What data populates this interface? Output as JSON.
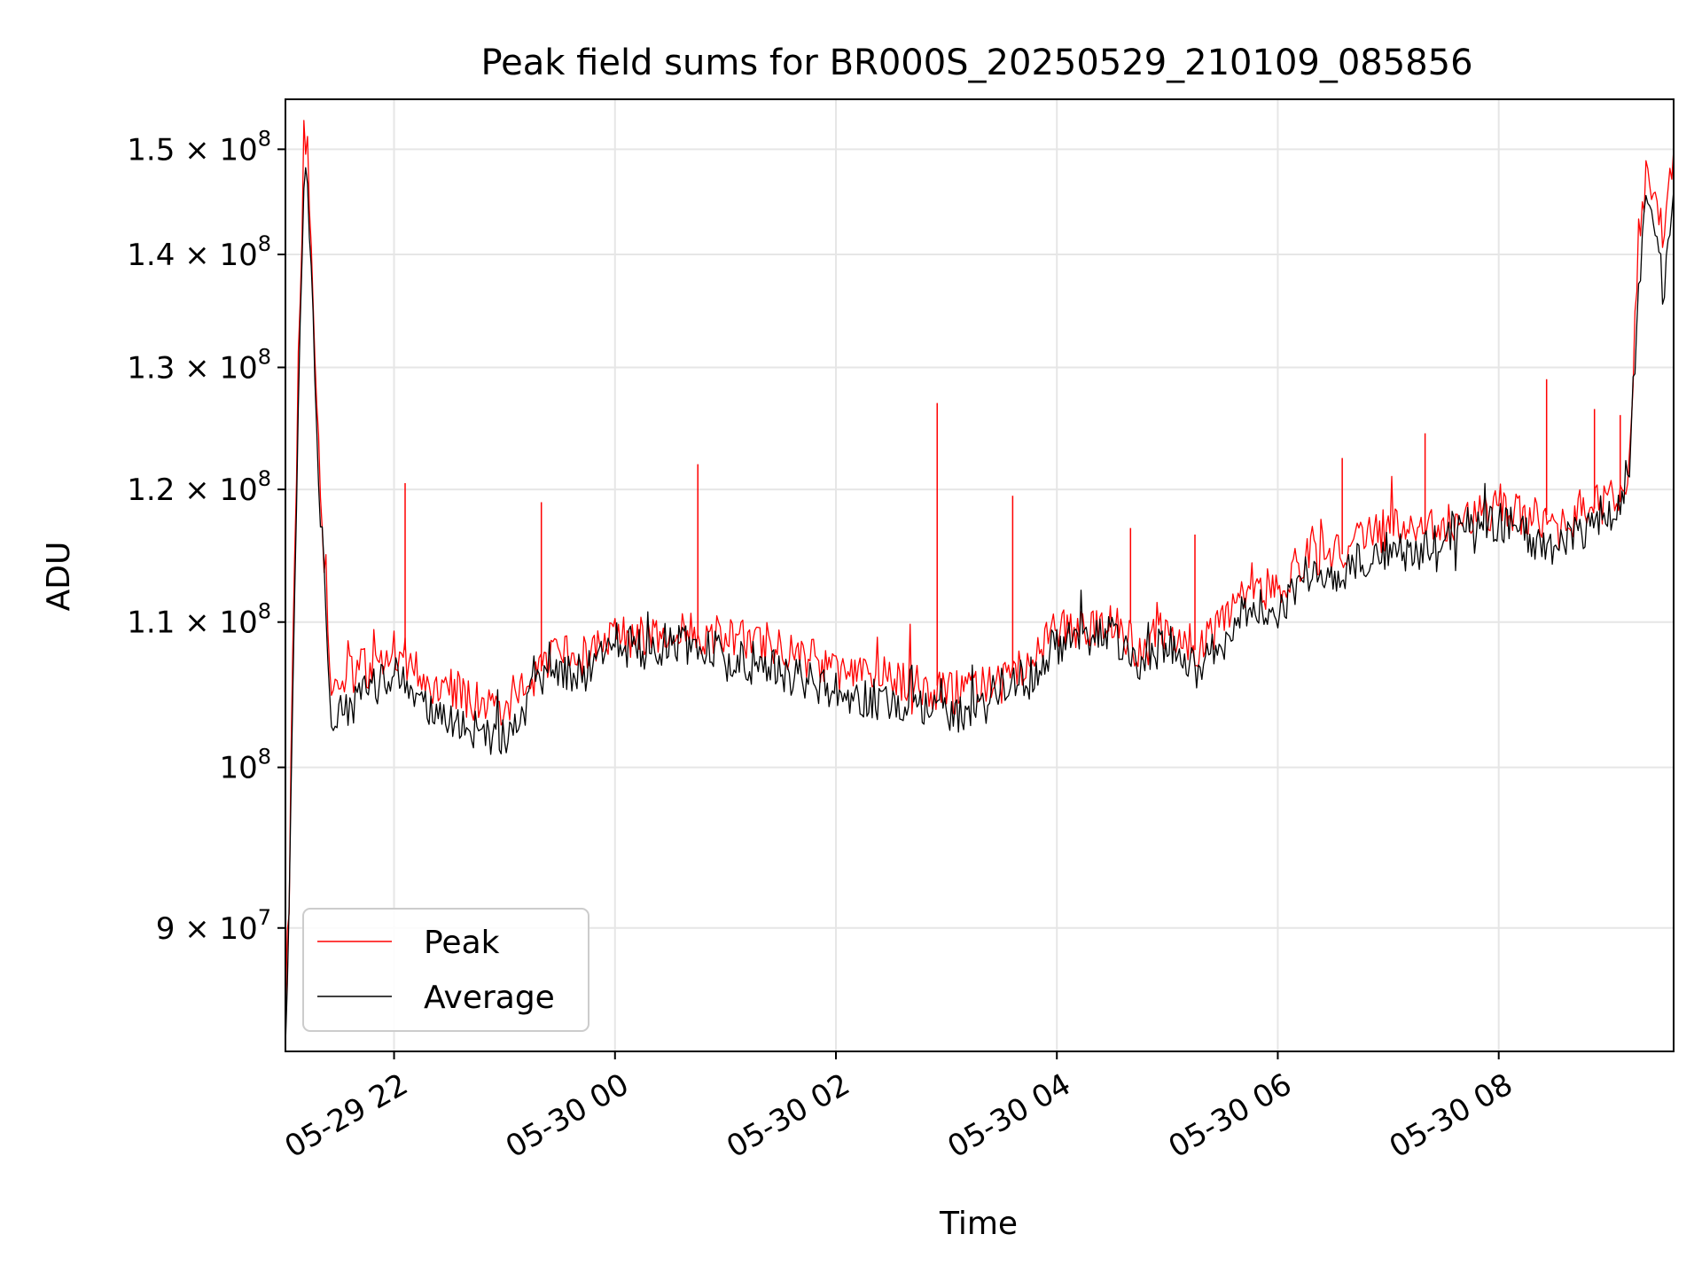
{
  "chart_data": {
    "type": "line",
    "title": "Peak field sums for BR000S_20250529_210109_085856",
    "xlabel": "Time",
    "ylabel": "ADU",
    "yscale": "log",
    "grid": true,
    "legend_position": "lower-left",
    "xlim": [
      "2025-05-29 21:01",
      "2025-05-30 09:35"
    ],
    "ylim": [
      83000000,
      155000000
    ],
    "x_ticks": [
      {
        "value": "2025-05-29 22:00",
        "label": "05-29 22"
      },
      {
        "value": "2025-05-30 00:00",
        "label": "05-30 00"
      },
      {
        "value": "2025-05-30 02:00",
        "label": "05-30 02"
      },
      {
        "value": "2025-05-30 04:00",
        "label": "05-30 04"
      },
      {
        "value": "2025-05-30 06:00",
        "label": "05-30 06"
      },
      {
        "value": "2025-05-30 08:00",
        "label": "05-30 08"
      }
    ],
    "y_ticks": [
      {
        "value": 90000000,
        "mantissa": "9",
        "times": "×",
        "base": "10",
        "exp": "7"
      },
      {
        "value": 100000000,
        "mantissa": "",
        "times": "",
        "base": "10",
        "exp": "8"
      },
      {
        "value": 110000000,
        "mantissa": "1.1",
        "times": "×",
        "base": "10",
        "exp": "8"
      },
      {
        "value": 120000000,
        "mantissa": "1.2",
        "times": "×",
        "base": "10",
        "exp": "8"
      },
      {
        "value": 130000000,
        "mantissa": "1.3",
        "times": "×",
        "base": "10",
        "exp": "8"
      },
      {
        "value": 140000000,
        "mantissa": "1.4",
        "times": "×",
        "base": "10",
        "exp": "8"
      },
      {
        "value": 150000000,
        "mantissa": "1.5",
        "times": "×",
        "base": "10",
        "exp": "8"
      }
    ],
    "series": [
      {
        "name": "Peak",
        "color": "#ff0000",
        "points": [
          {
            "t": "2025-05-29 21:01",
            "v": 86000000
          },
          {
            "t": "2025-05-29 21:03",
            "v": 92000000
          },
          {
            "t": "2025-05-29 21:05",
            "v": 108000000
          },
          {
            "t": "2025-05-29 21:07",
            "v": 122000000
          },
          {
            "t": "2025-05-29 21:09",
            "v": 137000000
          },
          {
            "t": "2025-05-29 21:11",
            "v": 149000000
          },
          {
            "t": "2025-05-29 21:13",
            "v": 151000000
          },
          {
            "t": "2025-05-29 21:15",
            "v": 141000000
          },
          {
            "t": "2025-05-29 21:18",
            "v": 126000000
          },
          {
            "t": "2025-05-29 21:22",
            "v": 115000000
          },
          {
            "t": "2025-05-29 21:26",
            "v": 106000000
          },
          {
            "t": "2025-05-29 21:30",
            "v": 105500000
          },
          {
            "t": "2025-05-29 21:40",
            "v": 106500000
          },
          {
            "t": "2025-05-29 21:50",
            "v": 107000000
          },
          {
            "t": "2025-05-29 22:00",
            "v": 108000000
          },
          {
            "t": "2025-05-29 22:10",
            "v": 107000000
          },
          {
            "t": "2025-05-29 22:20",
            "v": 105500000
          },
          {
            "t": "2025-05-29 22:30",
            "v": 105000000
          },
          {
            "t": "2025-05-29 22:45",
            "v": 104500000
          },
          {
            "t": "2025-05-29 23:00",
            "v": 104000000
          },
          {
            "t": "2025-05-29 23:15",
            "v": 106500000
          },
          {
            "t": "2025-05-29 23:30",
            "v": 107500000
          },
          {
            "t": "2025-05-29 23:45",
            "v": 107500000
          },
          {
            "t": "2025-05-30 00:00",
            "v": 109000000
          },
          {
            "t": "2025-05-30 00:15",
            "v": 109000000
          },
          {
            "t": "2025-05-30 00:30",
            "v": 109500000
          },
          {
            "t": "2025-05-30 00:45",
            "v": 109000000
          },
          {
            "t": "2025-05-30 01:00",
            "v": 109000000
          },
          {
            "t": "2025-05-30 01:15",
            "v": 108500000
          },
          {
            "t": "2025-05-30 01:30",
            "v": 108000000
          },
          {
            "t": "2025-05-30 01:45",
            "v": 107500000
          },
          {
            "t": "2025-05-30 02:00",
            "v": 106500000
          },
          {
            "t": "2025-05-30 02:15",
            "v": 106000000
          },
          {
            "t": "2025-05-30 02:30",
            "v": 106000000
          },
          {
            "t": "2025-05-30 02:45",
            "v": 105500000
          },
          {
            "t": "2025-05-30 03:00",
            "v": 105000000
          },
          {
            "t": "2025-05-30 03:15",
            "v": 105000000
          },
          {
            "t": "2025-05-30 03:30",
            "v": 106500000
          },
          {
            "t": "2025-05-30 03:45",
            "v": 107000000
          },
          {
            "t": "2025-05-30 04:00",
            "v": 109500000
          },
          {
            "t": "2025-05-30 04:15",
            "v": 109500000
          },
          {
            "t": "2025-05-30 04:30",
            "v": 110000000
          },
          {
            "t": "2025-05-30 04:45",
            "v": 108000000
          },
          {
            "t": "2025-05-30 05:00",
            "v": 109500000
          },
          {
            "t": "2025-05-30 05:15",
            "v": 108000000
          },
          {
            "t": "2025-05-30 05:30",
            "v": 110000000
          },
          {
            "t": "2025-05-30 05:45",
            "v": 113000000
          },
          {
            "t": "2025-05-30 06:00",
            "v": 112000000
          },
          {
            "t": "2025-05-30 06:15",
            "v": 115000000
          },
          {
            "t": "2025-05-30 06:30",
            "v": 115000000
          },
          {
            "t": "2025-05-30 06:45",
            "v": 116000000
          },
          {
            "t": "2025-05-30 07:00",
            "v": 117000000
          },
          {
            "t": "2025-05-30 07:15",
            "v": 116500000
          },
          {
            "t": "2025-05-30 07:30",
            "v": 117500000
          },
          {
            "t": "2025-05-30 07:45",
            "v": 118000000
          },
          {
            "t": "2025-05-30 08:00",
            "v": 118500000
          },
          {
            "t": "2025-05-30 08:15",
            "v": 118000000
          },
          {
            "t": "2025-05-30 08:30",
            "v": 116500000
          },
          {
            "t": "2025-05-30 08:45",
            "v": 118500000
          },
          {
            "t": "2025-05-30 09:00",
            "v": 119000000
          },
          {
            "t": "2025-05-30 09:10",
            "v": 121000000
          },
          {
            "t": "2025-05-30 09:16",
            "v": 140000000
          },
          {
            "t": "2025-05-30 09:20",
            "v": 147000000
          },
          {
            "t": "2025-05-30 09:25",
            "v": 145000000
          },
          {
            "t": "2025-05-30 09:30",
            "v": 141000000
          },
          {
            "t": "2025-05-30 09:35",
            "v": 150000000
          }
        ],
        "spikes": [
          {
            "t": "2025-05-29 22:06",
            "v": 120500000
          },
          {
            "t": "2025-05-29 23:20",
            "v": 119000000
          },
          {
            "t": "2025-05-30 00:45",
            "v": 122000000
          },
          {
            "t": "2025-05-30 02:55",
            "v": 127000000
          },
          {
            "t": "2025-05-30 03:36",
            "v": 119500000
          },
          {
            "t": "2025-05-30 04:40",
            "v": 117000000
          },
          {
            "t": "2025-05-30 05:15",
            "v": 116500000
          },
          {
            "t": "2025-05-30 06:35",
            "v": 122500000
          },
          {
            "t": "2025-05-30 07:20",
            "v": 124500000
          },
          {
            "t": "2025-05-30 08:26",
            "v": 129000000
          },
          {
            "t": "2025-05-30 08:52",
            "v": 126500000
          },
          {
            "t": "2025-05-30 09:06",
            "v": 126000000
          }
        ]
      },
      {
        "name": "Average",
        "color": "#000000",
        "points": [
          {
            "t": "2025-05-29 21:01",
            "v": 84500000
          },
          {
            "t": "2025-05-29 21:03",
            "v": 90500000
          },
          {
            "t": "2025-05-29 21:05",
            "v": 106000000
          },
          {
            "t": "2025-05-29 21:07",
            "v": 120000000
          },
          {
            "t": "2025-05-29 21:09",
            "v": 135000000
          },
          {
            "t": "2025-05-29 21:11",
            "v": 146000000
          },
          {
            "t": "2025-05-29 21:13",
            "v": 148000000
          },
          {
            "t": "2025-05-29 21:15",
            "v": 138000000
          },
          {
            "t": "2025-05-29 21:18",
            "v": 124000000
          },
          {
            "t": "2025-05-29 21:22",
            "v": 113000000
          },
          {
            "t": "2025-05-29 21:26",
            "v": 102500000
          },
          {
            "t": "2025-05-29 21:30",
            "v": 103500000
          },
          {
            "t": "2025-05-29 21:40",
            "v": 104500000
          },
          {
            "t": "2025-05-29 21:50",
            "v": 105500000
          },
          {
            "t": "2025-05-29 22:00",
            "v": 106500000
          },
          {
            "t": "2025-05-29 22:10",
            "v": 104500000
          },
          {
            "t": "2025-05-29 22:20",
            "v": 103500000
          },
          {
            "t": "2025-05-29 22:30",
            "v": 103000000
          },
          {
            "t": "2025-05-29 22:45",
            "v": 102500000
          },
          {
            "t": "2025-05-29 23:00",
            "v": 102000000
          },
          {
            "t": "2025-05-29 23:15",
            "v": 105000000
          },
          {
            "t": "2025-05-29 23:30",
            "v": 106000000
          },
          {
            "t": "2025-05-29 23:45",
            "v": 106500000
          },
          {
            "t": "2025-05-30 00:00",
            "v": 108500000
          },
          {
            "t": "2025-05-30 00:15",
            "v": 108000000
          },
          {
            "t": "2025-05-30 00:30",
            "v": 108500000
          },
          {
            "t": "2025-05-30 00:45",
            "v": 108000000
          },
          {
            "t": "2025-05-30 01:00",
            "v": 107500000
          },
          {
            "t": "2025-05-30 01:15",
            "v": 107000000
          },
          {
            "t": "2025-05-30 01:30",
            "v": 106500000
          },
          {
            "t": "2025-05-30 01:45",
            "v": 106000000
          },
          {
            "t": "2025-05-30 02:00",
            "v": 105000000
          },
          {
            "t": "2025-05-30 02:15",
            "v": 104500000
          },
          {
            "t": "2025-05-30 02:30",
            "v": 104500000
          },
          {
            "t": "2025-05-30 02:45",
            "v": 104000000
          },
          {
            "t": "2025-05-30 03:00",
            "v": 103500000
          },
          {
            "t": "2025-05-30 03:15",
            "v": 103500000
          },
          {
            "t": "2025-05-30 03:30",
            "v": 105500000
          },
          {
            "t": "2025-05-30 03:45",
            "v": 106000000
          },
          {
            "t": "2025-05-30 04:00",
            "v": 108500000
          },
          {
            "t": "2025-05-30 04:15",
            "v": 108500000
          },
          {
            "t": "2025-05-30 04:30",
            "v": 109000000
          },
          {
            "t": "2025-05-30 04:45",
            "v": 107000000
          },
          {
            "t": "2025-05-30 05:00",
            "v": 108500000
          },
          {
            "t": "2025-05-30 05:15",
            "v": 106500000
          },
          {
            "t": "2025-05-30 05:30",
            "v": 108500000
          },
          {
            "t": "2025-05-30 05:45",
            "v": 111500000
          },
          {
            "t": "2025-05-30 06:00",
            "v": 110500000
          },
          {
            "t": "2025-05-30 06:15",
            "v": 113500000
          },
          {
            "t": "2025-05-30 06:30",
            "v": 113500000
          },
          {
            "t": "2025-05-30 06:45",
            "v": 114500000
          },
          {
            "t": "2025-05-30 07:00",
            "v": 115500000
          },
          {
            "t": "2025-05-30 07:15",
            "v": 115000000
          },
          {
            "t": "2025-05-30 07:30",
            "v": 116500000
          },
          {
            "t": "2025-05-30 07:45",
            "v": 117000000
          },
          {
            "t": "2025-05-30 08:00",
            "v": 117500000
          },
          {
            "t": "2025-05-30 08:15",
            "v": 116500000
          },
          {
            "t": "2025-05-30 08:30",
            "v": 115000000
          },
          {
            "t": "2025-05-30 08:45",
            "v": 117000000
          },
          {
            "t": "2025-05-30 09:00",
            "v": 117500000
          },
          {
            "t": "2025-05-30 09:10",
            "v": 119500000
          },
          {
            "t": "2025-05-30 09:16",
            "v": 137000000
          },
          {
            "t": "2025-05-30 09:20",
            "v": 144000000
          },
          {
            "t": "2025-05-30 09:25",
            "v": 142000000
          },
          {
            "t": "2025-05-30 09:30",
            "v": 136000000
          },
          {
            "t": "2025-05-30 09:35",
            "v": 146000000
          }
        ]
      }
    ]
  }
}
